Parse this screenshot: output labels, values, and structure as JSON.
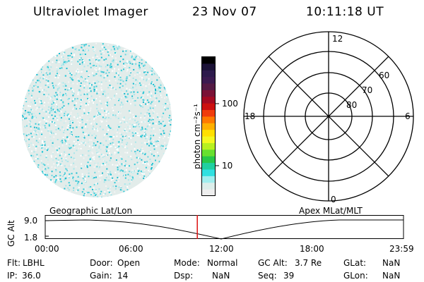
{
  "header": {
    "title": "Ultraviolet Imager",
    "date": "23 Nov 07",
    "time": "10:11:18 UT"
  },
  "colorbar": {
    "unit_label": "photon cm⁻²s⁻¹",
    "ticks": [
      "100",
      "10"
    ],
    "colors": [
      "#000000",
      "#1b1236",
      "#2d1a4c",
      "#3b1a50",
      "#541a44",
      "#7a1236",
      "#a40a22",
      "#cc1010",
      "#f03c0c",
      "#ff7a00",
      "#ffb000",
      "#ffe000",
      "#f4f820",
      "#b8f020",
      "#68e030",
      "#28c84a",
      "#20d0a0",
      "#30e0e0",
      "#a0eeee",
      "#dceeea",
      "#eeeeee"
    ]
  },
  "polar": {
    "labels": {
      "top": "12",
      "bottom": "0",
      "left": "18",
      "right": "6",
      "r60": "60",
      "r70": "70",
      "r80": "80"
    }
  },
  "timeline": {
    "left_caption": "Geographic Lat/Lon",
    "right_caption": "Apex MLat/MLT",
    "y_axis_label": "GC Alt",
    "y_ticks": [
      "9.0",
      "1.8"
    ],
    "x_ticks": [
      "00:00",
      "06:00",
      "12:00",
      "18:00",
      "23:59"
    ],
    "current_time_fraction": 0.4245
  },
  "status": {
    "row1": [
      {
        "label": "Flt:",
        "value": "LBHL"
      },
      {
        "label": "Door:",
        "value": "Open"
      },
      {
        "label": "Mode:",
        "value": "Normal"
      },
      {
        "label": "GC Alt:",
        "value": "3.7 Re"
      },
      {
        "label": "GLat:",
        "value": "NaN"
      }
    ],
    "row2": [
      {
        "label": "IP:",
        "value": "36.0"
      },
      {
        "label": "Gain:",
        "value": "14"
      },
      {
        "label": "Dsp:",
        "value": "NaN"
      },
      {
        "label": "Seq:",
        "value": "39"
      },
      {
        "label": "GLon:",
        "value": "NaN"
      }
    ]
  }
}
